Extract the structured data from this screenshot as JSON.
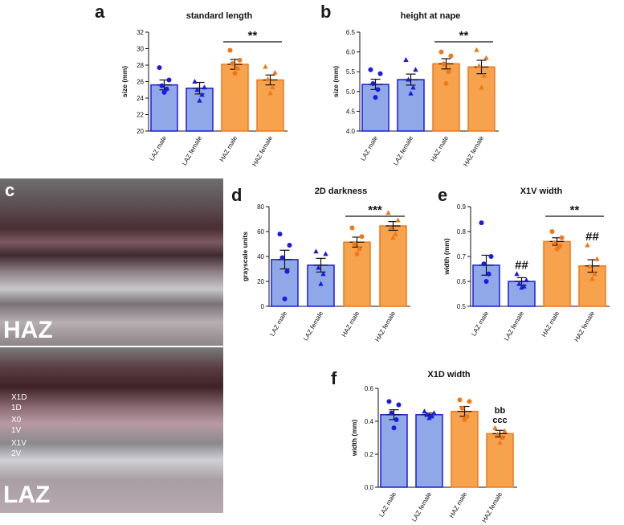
{
  "colors": {
    "laz_fill": "#8fa9e8",
    "laz_stroke": "#1b1be0",
    "laz_point": "#1b1be0",
    "haz_fill": "#f7a24c",
    "haz_stroke": "#f07818",
    "haz_point": "#f07818"
  },
  "photo": {
    "panel_letter": "c",
    "top_label": "HAZ",
    "bottom_label": "LAZ",
    "stripe_labels": [
      "X1D",
      "1D",
      "X0",
      "1V",
      "X1V",
      "2V"
    ]
  },
  "chart_data": [
    {
      "panel": "a",
      "type": "bar",
      "title": "standard length",
      "ylabel": "size (mm)",
      "categories": [
        "LAZ male",
        "LAZ female",
        "HAZ male",
        "HAZ female"
      ],
      "values": [
        25.6,
        25.2,
        28.1,
        26.2
      ],
      "errors": [
        0.6,
        0.7,
        0.6,
        0.6
      ],
      "points": [
        [
          27.7,
          26.2,
          25.5,
          25.1,
          24.7
        ],
        [
          26.0,
          25.3,
          25.0,
          24.4,
          23.7
        ],
        [
          29.8,
          28.6,
          28.2,
          27.6,
          27.0
        ],
        [
          27.8,
          27.1,
          26.3,
          25.3,
          24.6
        ]
      ],
      "ylim": [
        20,
        32
      ],
      "yticks": [
        20,
        22,
        24,
        26,
        28,
        30,
        32
      ],
      "tick_labels": [
        "20",
        "22",
        "24",
        "26",
        "28",
        "30",
        "32"
      ],
      "significance": [
        {
          "from": 2,
          "to": 3,
          "label": "**"
        }
      ],
      "annotations": []
    },
    {
      "panel": "b",
      "type": "bar",
      "title": "height at nape",
      "ylabel": "size (mm)",
      "categories": [
        "LAZ male",
        "LAZ female",
        "HAZ male",
        "HAZ female"
      ],
      "values": [
        5.18,
        5.3,
        5.7,
        5.62
      ],
      "errors": [
        0.13,
        0.14,
        0.13,
        0.17
      ],
      "points": [
        [
          5.55,
          5.45,
          5.2,
          5.05,
          4.85
        ],
        [
          5.8,
          5.55,
          5.3,
          5.1,
          4.95
        ],
        [
          6.0,
          5.9,
          5.7,
          5.5,
          5.2
        ],
        [
          6.05,
          5.85,
          5.65,
          5.4,
          5.1
        ]
      ],
      "ylim": [
        4.0,
        6.5
      ],
      "yticks": [
        4.0,
        4.5,
        5.0,
        5.5,
        6.0,
        6.5
      ],
      "tick_labels": [
        "4.0",
        "4.5",
        "5.0",
        "5.5",
        "6.0",
        "6.5"
      ],
      "significance": [
        {
          "from": 2,
          "to": 3,
          "label": "**"
        }
      ],
      "annotations": []
    },
    {
      "panel": "d",
      "type": "bar",
      "title": "2D darkness",
      "ylabel": "grayscale units",
      "categories": [
        "LAZ male",
        "LAZ female",
        "HAZ male",
        "HAZ female"
      ],
      "values": [
        37.5,
        33.0,
        51.5,
        64.5
      ],
      "errors": [
        7.5,
        5.5,
        4.0,
        3.5
      ],
      "points": [
        [
          58,
          49,
          39,
          28,
          6
        ],
        [
          44,
          42,
          31,
          26,
          18
        ],
        [
          63,
          56,
          50,
          46,
          42
        ],
        [
          75,
          69,
          63,
          58,
          55
        ]
      ],
      "ylim": [
        0,
        80
      ],
      "yticks": [
        0,
        20,
        40,
        60,
        80
      ],
      "tick_labels": [
        "0",
        "20",
        "40",
        "60",
        "80"
      ],
      "significance": [
        {
          "from": 2,
          "to": 3,
          "label": "***"
        }
      ],
      "annotations": []
    },
    {
      "panel": "e",
      "type": "bar",
      "title": "X1V width",
      "ylabel": "width (mm)",
      "categories": [
        "LAZ male",
        "LAZ female",
        "HAZ male",
        "HAZ female"
      ],
      "values": [
        0.665,
        0.6,
        0.76,
        0.662
      ],
      "errors": [
        0.04,
        0.015,
        0.015,
        0.025
      ],
      "points": [
        [
          0.835,
          0.7,
          0.67,
          0.63,
          0.6
        ],
        [
          0.63,
          0.605,
          0.59,
          0.58,
          0.575
        ],
        [
          0.8,
          0.775,
          0.755,
          0.74,
          0.73
        ],
        [
          0.745,
          0.69,
          0.66,
          0.63,
          0.61
        ]
      ],
      "ylim": [
        0.5,
        0.9
      ],
      "yticks": [
        0.5,
        0.6,
        0.7,
        0.8,
        0.9
      ],
      "tick_labels": [
        "0.5",
        "0.6",
        "0.7",
        "0.8",
        "0.9"
      ],
      "significance": [
        {
          "from": 2,
          "to": 3,
          "label": "**"
        }
      ],
      "annotations": [
        {
          "bar": 1,
          "label": "##"
        },
        {
          "bar": 3,
          "label": "##"
        }
      ]
    },
    {
      "panel": "f",
      "type": "bar",
      "title": "X1D width",
      "ylabel": "width (mm)",
      "categories": [
        "LAZ male",
        "LAZ female",
        "HAZ male",
        "HAZ female"
      ],
      "values": [
        0.44,
        0.44,
        0.46,
        0.325
      ],
      "errors": [
        0.03,
        0.01,
        0.03,
        0.02
      ],
      "points": [
        [
          0.52,
          0.5,
          0.45,
          0.41,
          0.36
        ],
        [
          0.46,
          0.45,
          0.44,
          0.43,
          0.42
        ],
        [
          0.53,
          0.52,
          0.48,
          0.43,
          0.41
        ],
        [
          0.36,
          0.34,
          0.32,
          0.3,
          0.27
        ]
      ],
      "ylim": [
        0.0,
        0.6
      ],
      "yticks": [
        0.0,
        0.2,
        0.4,
        0.6
      ],
      "tick_labels": [
        "0.0",
        "0.2",
        "0.4",
        "0.6"
      ],
      "significance": [],
      "annotations": [
        {
          "bar": 3,
          "label": "bb"
        },
        {
          "bar": 3,
          "label": "ccc"
        }
      ]
    }
  ]
}
